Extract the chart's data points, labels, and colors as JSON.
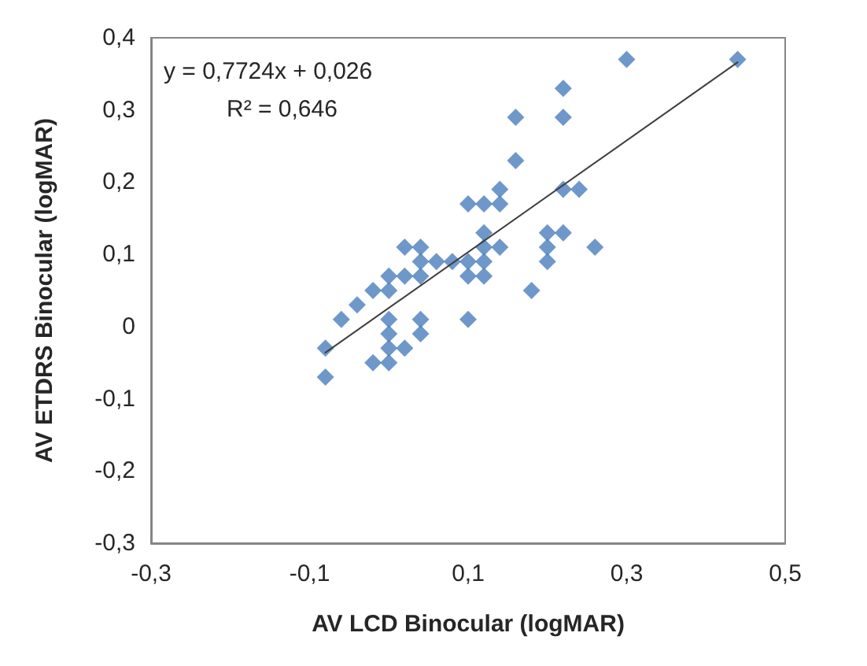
{
  "chart_data": {
    "type": "scatter",
    "xlabel": "AV LCD Binocular (logMAR)",
    "ylabel": "AV ETDRS Binocular (logMAR)",
    "annotations": [
      "y = 0,7724x + 0,026",
      "R² = 0,646"
    ],
    "marker": "diamond",
    "grid": false,
    "xlim": [
      -0.3,
      0.5
    ],
    "xticks": [
      {
        "value": -0.3,
        "label": "-0,3"
      },
      {
        "value": -0.1,
        "label": "-0,1"
      },
      {
        "value": 0.1,
        "label": "0,1"
      },
      {
        "value": 0.3,
        "label": "0,3"
      },
      {
        "value": 0.5,
        "label": "0,5"
      }
    ],
    "ylim": [
      -0.3,
      0.4
    ],
    "yticks": [
      {
        "value": -0.3,
        "label": "-0,3"
      },
      {
        "value": -0.2,
        "label": "-0,2"
      },
      {
        "value": -0.1,
        "label": "-0,1"
      },
      0,
      {
        "value": 0.1,
        "label": "0,1"
      },
      {
        "value": 0.2,
        "label": "0,2"
      },
      {
        "value": 0.3,
        "label": "0,3"
      },
      {
        "value": 0.4,
        "label": "0,4"
      }
    ],
    "series": [
      {
        "color": "#4a7ebb",
        "x": [
          -0.08,
          -0.08,
          -0.06,
          -0.04,
          -0.02,
          -0.02,
          0,
          0,
          0,
          0,
          0,
          0,
          0.02,
          0.02,
          0.02,
          0.04,
          0.04,
          0.04,
          0.04,
          0.04,
          0.06,
          0.08,
          0.1,
          0.1,
          0.1,
          0.1,
          0.12,
          0.12,
          0.12,
          0.12,
          0.12,
          0.14,
          0.14,
          0.14,
          0.16,
          0.16,
          0.18,
          0.2,
          0.2,
          0.2,
          0.22,
          0.22,
          0.22,
          0.22,
          0.24,
          0.26,
          0.3,
          0.44
        ],
        "values": [
          -0.03,
          -0.07,
          0.01,
          0.03,
          0.05,
          -0.05,
          0.07,
          0.05,
          0.01,
          -0.01,
          -0.03,
          -0.05,
          0.11,
          0.07,
          -0.03,
          0.11,
          0.09,
          0.07,
          0.01,
          -0.01,
          0.09,
          0.09,
          0.09,
          0.07,
          0.17,
          0.01,
          0.17,
          0.13,
          0.11,
          0.09,
          0.07,
          0.19,
          0.17,
          0.11,
          0.29,
          0.23,
          0.05,
          0.13,
          0.11,
          0.09,
          0.33,
          0.29,
          0.19,
          0.13,
          0.19,
          0.11,
          0.37,
          0.37
        ]
      },
      {
        "type": "line",
        "color": "#404040",
        "marker": "none",
        "x": [
          -0.08,
          0.44
        ],
        "values": [
          -0.036,
          0.366
        ]
      }
    ]
  }
}
